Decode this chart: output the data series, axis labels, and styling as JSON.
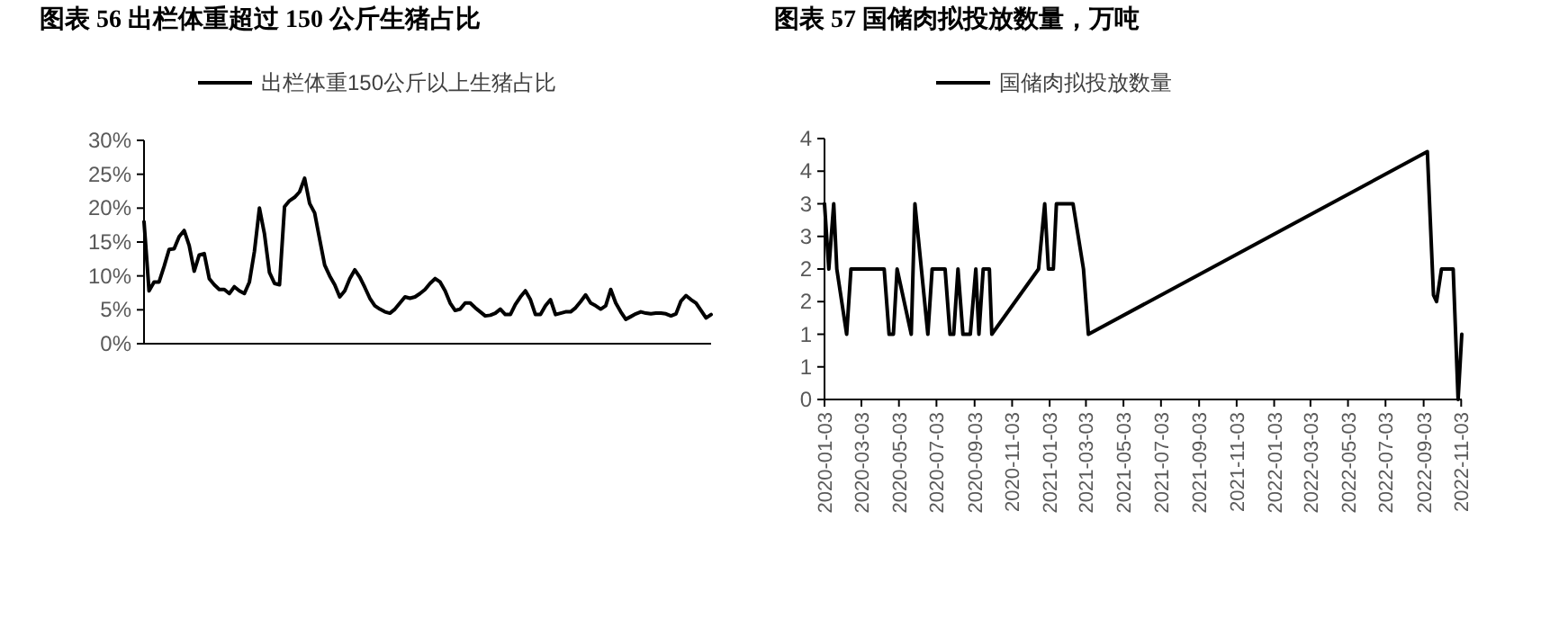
{
  "chart_data": [
    {
      "type": "line",
      "title": "图表  56  出栏体重超过 150 公斤生猪占比",
      "legend": "top",
      "categories": [
        null,
        null,
        null,
        null,
        null,
        null,
        null,
        null,
        null,
        null,
        null,
        null,
        null,
        null,
        null,
        null,
        null,
        null,
        null,
        null,
        null,
        null,
        null,
        null,
        null,
        null,
        null,
        null,
        null,
        null,
        null,
        null,
        null,
        null,
        null,
        null,
        null,
        null,
        null,
        null,
        null,
        null,
        null,
        null,
        null,
        null,
        null,
        null,
        null,
        null,
        null,
        null,
        null,
        null,
        null,
        null,
        null,
        null,
        null,
        null,
        null,
        null,
        null,
        null,
        null,
        null,
        null,
        null,
        null,
        null,
        null,
        null,
        null,
        null,
        null,
        null,
        null,
        null,
        null,
        null,
        null,
        null,
        null,
        null,
        null,
        null,
        null,
        null,
        null,
        null,
        null,
        null,
        null,
        null,
        null,
        null,
        null,
        null,
        null,
        null,
        null,
        null,
        null,
        null,
        null,
        null,
        null,
        null,
        null,
        null,
        null,
        null,
        null,
        null
      ],
      "ylim": [
        0,
        30
      ],
      "yticks": [
        {
          "value": 0,
          "label": "0%"
        },
        {
          "value": 5,
          "label": "5%"
        },
        {
          "value": 10,
          "label": "10%"
        },
        {
          "value": 15,
          "label": "15%"
        },
        {
          "value": 20,
          "label": "20%"
        },
        {
          "value": 25,
          "label": "25%"
        },
        {
          "value": 30,
          "label": "30%"
        }
      ],
      "series": [
        {
          "name": "出栏体重150公斤以上生猪占比",
          "color": "#000000",
          "values": [
            18.0,
            7.8,
            9.1,
            9.1,
            11.4,
            13.9,
            14.0,
            15.8,
            16.7,
            14.5,
            10.7,
            13.1,
            13.3,
            9.6,
            8.7,
            8.0,
            8.0,
            7.4,
            8.4,
            7.8,
            7.4,
            9.1,
            13.6,
            20.0,
            16.2,
            10.5,
            8.9,
            8.7,
            20.2,
            21.1,
            21.6,
            22.4,
            24.4,
            20.7,
            19.3,
            15.4,
            11.6,
            10.0,
            8.7,
            6.9,
            7.8,
            9.6,
            10.9,
            9.8,
            8.3,
            6.7,
            5.6,
            5.1,
            4.7,
            4.5,
            5.1,
            6.0,
            6.9,
            6.7,
            6.9,
            7.4,
            8.0,
            8.9,
            9.6,
            9.1,
            7.8,
            6.0,
            4.9,
            5.1,
            6.0,
            6.0,
            5.3,
            4.7,
            4.1,
            4.2,
            4.5,
            5.1,
            4.3,
            4.3,
            5.8,
            6.9,
            7.8,
            6.5,
            4.3,
            4.3,
            5.6,
            6.5,
            4.3,
            4.5,
            4.7,
            4.7,
            5.3,
            6.2,
            7.2,
            6.0,
            5.6,
            5.1,
            5.6,
            8.0,
            6.0,
            4.7,
            3.6,
            4.0,
            4.4,
            4.7,
            4.5,
            4.4,
            4.5,
            4.5,
            4.4,
            4.1,
            4.4,
            6.3,
            7.1,
            6.5,
            6.0,
            4.9,
            3.8,
            4.3
          ]
        }
      ]
    },
    {
      "type": "line",
      "title": "图表  57  国储肉拟投放数量，万吨",
      "legend": "top",
      "xlim": [
        "2020-01-03",
        "2022-11-04"
      ],
      "xticks": [
        "2020-01-03",
        "2020-03-03",
        "2020-05-03",
        "2020-07-03",
        "2020-09-03",
        "2020-11-03",
        "2021-01-03",
        "2021-03-03",
        "2021-05-03",
        "2021-07-03",
        "2021-09-03",
        "2021-11-03",
        "2022-01-03",
        "2022-03-03",
        "2022-05-03",
        "2022-07-03",
        "2022-09-03",
        "2022-11-03"
      ],
      "ylim": [
        0,
        4
      ],
      "yticks": [
        0,
        {
          "value": 0.5,
          "label": "1"
        },
        1,
        {
          "value": 1.5,
          "label": "2"
        },
        2,
        {
          "value": 2.5,
          "label": "3"
        },
        3,
        {
          "value": 3.5,
          "label": "4"
        },
        4
      ],
      "series": [
        {
          "name": "国储肉拟投放数量",
          "color": "#000000",
          "x": [
            "2020-01-03",
            "2020-01-10",
            "2020-01-18",
            "2020-01-23",
            "2020-02-08",
            "2020-02-15",
            "2020-04-09",
            "2020-04-17",
            "2020-04-24",
            "2020-04-30",
            "2020-05-23",
            "2020-05-29",
            "2020-06-19",
            "2020-06-26",
            "2020-07-17",
            "2020-07-25",
            "2020-07-31",
            "2020-08-07",
            "2020-08-15",
            "2020-08-27",
            "2020-09-05",
            "2020-09-10",
            "2020-09-17",
            "2020-09-27",
            "2020-10-01",
            "2020-12-16",
            "2020-12-26",
            "2021-01-01",
            "2021-01-09",
            "2021-01-14",
            "2021-02-10",
            "2021-02-27",
            "2021-03-07",
            "2022-09-09",
            "2022-09-19",
            "2022-09-24",
            "2022-10-02",
            "2022-10-21",
            "2022-10-29",
            "2022-11-04"
          ],
          "values": [
            3,
            2,
            3,
            2,
            1,
            2,
            2,
            1,
            1,
            2,
            1,
            3,
            1,
            2,
            2,
            1,
            1,
            2,
            1,
            1,
            2,
            1,
            2,
            2,
            1,
            2,
            3,
            2,
            2,
            3,
            3,
            2,
            1,
            3.8,
            1.6,
            1.5,
            2,
            2,
            0,
            1
          ]
        }
      ]
    }
  ]
}
